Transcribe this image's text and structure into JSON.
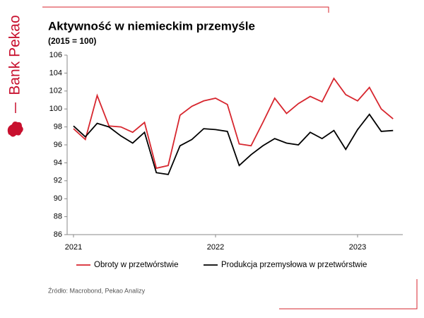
{
  "brand": "Bank Pekao",
  "source": "Źródło: Macrobond, Pekao Analizy",
  "chart_data": {
    "type": "line",
    "title": "Aktywność w niemieckim przemyśle",
    "subtitle": "(2015 = 100)",
    "categories": [
      "2021",
      null,
      null,
      null,
      null,
      null,
      null,
      null,
      null,
      null,
      null,
      null,
      "2022",
      null,
      null,
      null,
      null,
      null,
      null,
      null,
      null,
      null,
      null,
      null,
      "2023",
      null,
      null,
      null
    ],
    "series": [
      {
        "name": "Obroty w przetwórstwie",
        "color": "#d7262e",
        "values": [
          97.8,
          96.6,
          101.5,
          98.1,
          98.0,
          97.4,
          98.5,
          93.4,
          93.7,
          99.3,
          100.3,
          100.9,
          101.2,
          100.5,
          96.1,
          95.9,
          98.5,
          101.2,
          99.5,
          100.6,
          101.4,
          100.8,
          103.4,
          101.6,
          100.9,
          102.4,
          100.0,
          98.9
        ]
      },
      {
        "name": "Produkcja przemysłowa w przetwórstwie",
        "color": "#000000",
        "values": [
          98.1,
          96.9,
          98.4,
          98.0,
          97.0,
          96.2,
          97.4,
          92.9,
          92.7,
          95.9,
          96.6,
          97.8,
          97.7,
          97.5,
          93.7,
          94.9,
          95.9,
          96.7,
          96.2,
          96.0,
          97.4,
          96.7,
          97.6,
          95.5,
          97.7,
          99.4,
          97.5,
          97.6
        ]
      }
    ],
    "ylim": [
      86,
      106
    ],
    "yticks": [
      86,
      88,
      90,
      92,
      94,
      96,
      98,
      100,
      102,
      104,
      106
    ],
    "grid": false,
    "legend": "bottom"
  }
}
